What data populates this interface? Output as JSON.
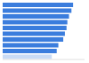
{
  "chart_data": {
    "type": "bar",
    "orientation": "horizontal",
    "categories": [
      null,
      null,
      null,
      null,
      null,
      null,
      null,
      null,
      null,
      null
    ],
    "values": [
      86,
      84,
      81,
      79,
      78,
      76,
      74,
      68,
      66,
      60
    ],
    "colors": [
      "#3b7ddd",
      "#3b7ddd",
      "#3b7ddd",
      "#3b7ddd",
      "#3b7ddd",
      "#3b7ddd",
      "#3b7ddd",
      "#3b7ddd",
      "#3b7ddd",
      "#c9dbf5"
    ],
    "xlim": [
      0,
      100
    ],
    "tick_labels": false,
    "grid": false
  }
}
